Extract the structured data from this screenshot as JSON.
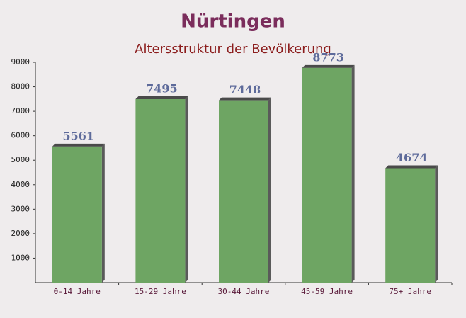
{
  "chart_data": {
    "type": "bar",
    "title": "Nürtingen",
    "subtitle": "Altersstruktur der Bevölkerung",
    "categories": [
      "0-14 Jahre",
      "15-29 Jahre",
      "30-44 Jahre",
      "45-59 Jahre",
      "75+ Jahre"
    ],
    "values": [
      5561,
      7495,
      7448,
      8773,
      4674
    ],
    "color": "#6ea563",
    "ylim": [
      0,
      9000
    ],
    "yticks": [
      1000,
      2000,
      3000,
      4000,
      5000,
      6000,
      7000,
      8000,
      9000
    ]
  }
}
